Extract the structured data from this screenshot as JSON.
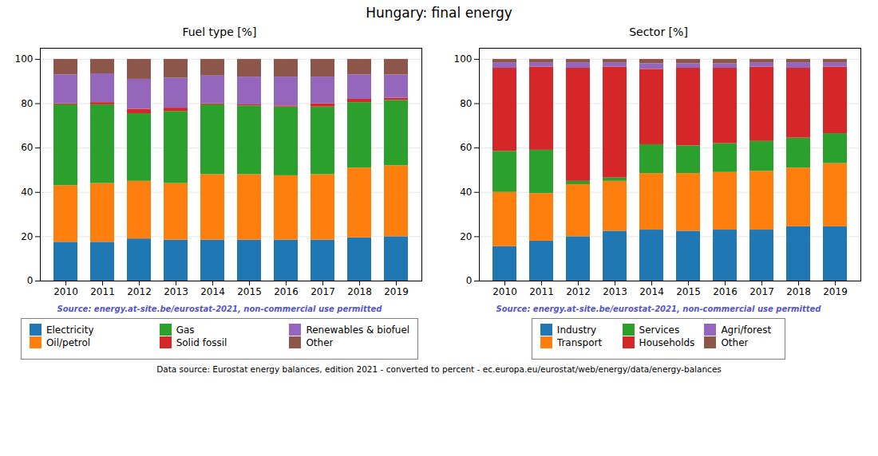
{
  "title": "Hungary: final energy",
  "annotations": [
    "Data source: Eurostat energy balances, edition 2021 - converted to percent - ec.europa.eu/eurostat/web/energy/data/energy-balances"
  ],
  "chart_data": [
    {
      "type": "bar",
      "title": "Fuel type [%]",
      "stacked": true,
      "categories": [
        "2010",
        "2011",
        "2012",
        "2013",
        "2014",
        "2015",
        "2016",
        "2017",
        "2018",
        "2019"
      ],
      "series": [
        {
          "name": "Electricity",
          "color": "#1f77b4",
          "values": [
            17.5,
            17.5,
            19.0,
            18.5,
            18.5,
            18.5,
            18.5,
            18.5,
            19.5,
            20.0
          ]
        },
        {
          "name": "Oil/petrol",
          "color": "#ff7f0e",
          "values": [
            25.5,
            26.5,
            26.0,
            25.5,
            29.5,
            29.5,
            29.0,
            29.5,
            31.5,
            32.0
          ]
        },
        {
          "name": "Gas",
          "color": "#2ca02c",
          "values": [
            36.5,
            35.5,
            30.5,
            32.5,
            31.5,
            31.0,
            31.0,
            30.5,
            29.5,
            29.5
          ]
        },
        {
          "name": "Solid fossil",
          "color": "#d62728",
          "values": [
            0.5,
            1.0,
            2.0,
            1.5,
            0.5,
            0.5,
            0.5,
            1.5,
            1.5,
            1.0
          ]
        },
        {
          "name": "Renewables & biofuel",
          "color": "#9467bd",
          "values": [
            13.0,
            13.0,
            13.5,
            13.5,
            12.5,
            12.5,
            13.0,
            12.0,
            11.0,
            10.5
          ]
        },
        {
          "name": "Other",
          "color": "#8c564b",
          "values": [
            7.0,
            6.5,
            9.0,
            8.5,
            7.5,
            8.0,
            8.0,
            8.0,
            7.0,
            7.0
          ]
        }
      ],
      "ylim": [
        0,
        105
      ],
      "yticks": [
        0,
        20,
        40,
        60,
        80,
        100
      ],
      "grid": true,
      "legend": "bottom",
      "annotations": [
        "Source: energy.at-site.be/eurostat-2021, non-commercial use permitted"
      ]
    },
    {
      "type": "bar",
      "title": "Sector [%]",
      "stacked": true,
      "categories": [
        "2010",
        "2011",
        "2012",
        "2013",
        "2014",
        "2015",
        "2016",
        "2017",
        "2018",
        "2019"
      ],
      "series": [
        {
          "name": "Industry",
          "color": "#1f77b4",
          "values": [
            15.5,
            18.0,
            20.0,
            22.5,
            23.0,
            22.5,
            23.0,
            23.0,
            24.5,
            24.5
          ]
        },
        {
          "name": "Transport",
          "color": "#ff7f0e",
          "values": [
            24.5,
            21.5,
            23.5,
            22.5,
            25.5,
            26.0,
            26.0,
            26.5,
            26.5,
            28.5
          ]
        },
        {
          "name": "Services",
          "color": "#2ca02c",
          "values": [
            18.5,
            19.5,
            1.5,
            1.5,
            13.0,
            12.5,
            13.0,
            13.5,
            13.5,
            13.5
          ]
        },
        {
          "name": "Households",
          "color": "#d62728",
          "values": [
            37.5,
            37.5,
            51.0,
            50.0,
            34.0,
            35.0,
            34.0,
            33.5,
            31.5,
            30.0
          ]
        },
        {
          "name": "Agri/forest",
          "color": "#9467bd",
          "values": [
            2.5,
            2.0,
            2.5,
            2.0,
            2.5,
            2.0,
            2.0,
            2.0,
            2.5,
            2.0
          ]
        },
        {
          "name": "Other",
          "color": "#8c564b",
          "values": [
            1.5,
            1.5,
            1.5,
            1.5,
            2.0,
            2.0,
            2.0,
            1.5,
            1.5,
            1.5
          ]
        }
      ],
      "ylim": [
        0,
        105
      ],
      "yticks": [
        0,
        20,
        40,
        60,
        80,
        100
      ],
      "grid": true,
      "legend": "bottom",
      "annotations": [
        "Source: energy.at-site.be/eurostat-2021, non-commercial use permitted"
      ]
    }
  ]
}
